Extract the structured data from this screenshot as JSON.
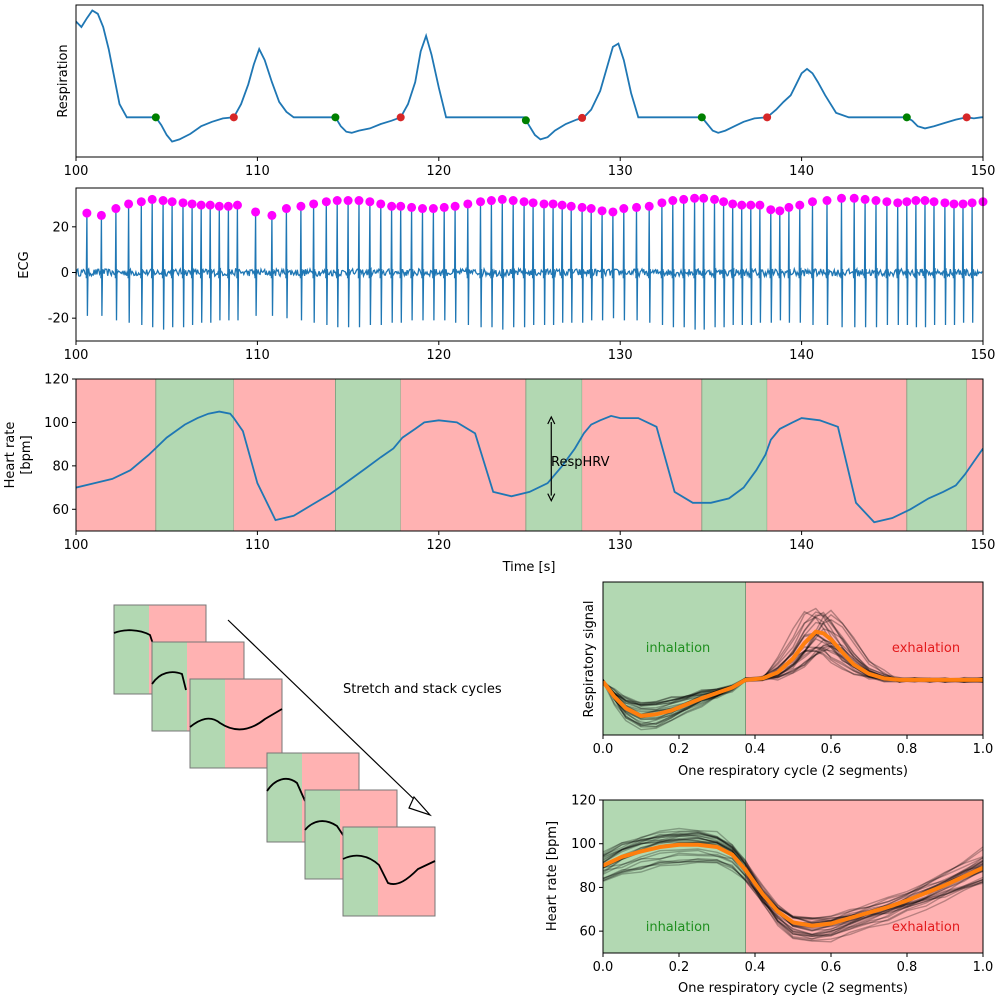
{
  "colors": {
    "signal": "#1f77b4",
    "inhalation_fill": "#b2d8b2",
    "exhalation_fill": "#ffb2b2",
    "onset_marker": "#008000",
    "peak_marker": "#d62728",
    "rpeak_marker": "#ff00ff",
    "average": "#ff7f0e",
    "traces": "#000000"
  },
  "texts": {
    "resp_ylabel": "Respiration",
    "ecg_ylabel": "ECG",
    "hr_ylabel_line1": "Heart rate",
    "hr_ylabel_line2": "[bpm]",
    "time_xlabel": "Time [s]",
    "resphrv_label": "RespHRV",
    "stack_label": "Stretch and stack cycles",
    "cycle_xlabel": "One respiratory cycle (2 segments)",
    "resp_signal_ylabel": "Respiratory signal",
    "hr_bpm_ylabel": "Heart rate [bpm]",
    "inhalation": "inhalation",
    "exhalation": "exhalation"
  },
  "chart_data": [
    {
      "type": "line",
      "name": "respiration",
      "ylabel": "Respiration",
      "xlim": [
        100,
        150
      ],
      "xticks": [
        100,
        110,
        120,
        130,
        140,
        150
      ],
      "x": [
        100.0,
        100.3,
        100.6,
        100.9,
        101.2,
        101.5,
        101.8,
        102.1,
        102.4,
        102.8,
        103.2,
        103.8,
        104.4,
        104.7,
        105.0,
        105.3,
        105.7,
        106.3,
        106.9,
        107.5,
        108.1,
        108.7,
        109.1,
        109.5,
        109.8,
        110.1,
        110.4,
        110.8,
        111.2,
        111.6,
        112.0,
        112.6,
        113.2,
        113.8,
        114.3,
        114.6,
        114.9,
        115.2,
        115.6,
        116.2,
        116.8,
        117.4,
        117.9,
        118.3,
        118.7,
        119.0,
        119.3,
        119.6,
        120.0,
        120.4,
        121.0,
        121.8,
        122.6,
        123.4,
        124.1,
        124.7,
        125.0,
        125.3,
        125.6,
        126.0,
        126.4,
        127.0,
        127.6,
        128.0,
        128.4,
        128.9,
        129.3,
        129.6,
        129.9,
        130.2,
        130.6,
        131.0,
        131.6,
        132.2,
        132.8,
        133.4,
        134.0,
        134.5,
        134.8,
        135.1,
        135.4,
        135.8,
        136.3,
        136.8,
        137.4,
        138.1,
        138.6,
        139.0,
        139.4,
        139.7,
        140.0,
        140.3,
        140.6,
        140.9,
        141.3,
        141.9,
        142.6,
        143.3,
        144.0,
        144.7,
        145.3,
        145.8,
        146.1,
        146.4,
        146.8,
        147.3,
        147.9,
        148.5,
        149.1,
        149.5,
        149.9,
        150.0
      ],
      "y": [
        0.85,
        0.8,
        0.88,
        0.95,
        0.92,
        0.8,
        0.6,
        0.35,
        0.1,
        -0.02,
        -0.02,
        -0.02,
        -0.02,
        -0.09,
        -0.18,
        -0.24,
        -0.22,
        -0.17,
        -0.1,
        -0.06,
        -0.03,
        -0.02,
        0.1,
        0.28,
        0.46,
        0.6,
        0.5,
        0.3,
        0.12,
        0.03,
        -0.02,
        -0.02,
        -0.02,
        -0.02,
        -0.02,
        -0.1,
        -0.15,
        -0.16,
        -0.14,
        -0.12,
        -0.08,
        -0.05,
        -0.02,
        0.1,
        0.3,
        0.58,
        0.72,
        0.55,
        0.25,
        -0.02,
        -0.02,
        -0.02,
        -0.02,
        -0.02,
        -0.02,
        -0.02,
        -0.1,
        -0.18,
        -0.22,
        -0.2,
        -0.14,
        -0.08,
        -0.04,
        -0.02,
        0.05,
        0.22,
        0.45,
        0.62,
        0.65,
        0.5,
        0.2,
        -0.02,
        -0.02,
        -0.02,
        -0.02,
        -0.02,
        -0.02,
        -0.02,
        -0.08,
        -0.14,
        -0.16,
        -0.14,
        -0.1,
        -0.06,
        -0.03,
        -0.02,
        0.05,
        0.12,
        0.18,
        0.28,
        0.38,
        0.42,
        0.38,
        0.3,
        0.18,
        0.02,
        -0.02,
        -0.02,
        -0.02,
        -0.02,
        -0.02,
        -0.02,
        -0.05,
        -0.1,
        -0.12,
        -0.1,
        -0.07,
        -0.04,
        -0.02,
        -0.03,
        -0.02,
        -0.02
      ],
      "onsets": [
        104.4,
        114.3,
        124.8,
        134.5,
        145.8
      ],
      "peaks": [
        108.7,
        117.9,
        127.9,
        138.1,
        149.1
      ],
      "ylim": [
        -0.38,
        1.0
      ],
      "yticks": "none"
    },
    {
      "type": "line",
      "name": "ecg",
      "ylabel": "ECG",
      "xlim": [
        100,
        150
      ],
      "xticks": [
        100,
        110,
        120,
        130,
        140,
        150
      ],
      "ylim": [
        -30,
        37
      ],
      "yticks": [
        -20,
        0,
        20
      ],
      "r_peak_times": [
        100.6,
        101.4,
        102.2,
        102.9,
        103.6,
        104.2,
        104.8,
        105.3,
        105.9,
        106.4,
        106.9,
        107.4,
        107.9,
        108.4,
        108.9,
        109.9,
        110.8,
        111.6,
        112.4,
        113.1,
        113.8,
        114.4,
        115.0,
        115.6,
        116.2,
        116.8,
        117.4,
        117.9,
        118.5,
        119.1,
        119.7,
        120.3,
        120.9,
        121.6,
        122.3,
        122.9,
        123.5,
        124.1,
        124.7,
        125.2,
        125.8,
        126.3,
        126.8,
        127.3,
        127.9,
        128.4,
        129.0,
        129.6,
        130.2,
        130.9,
        131.6,
        132.3,
        132.9,
        133.5,
        134.1,
        134.6,
        135.2,
        135.7,
        136.2,
        136.7,
        137.2,
        137.7,
        138.3,
        138.8,
        139.3,
        139.9,
        140.6,
        141.4,
        142.2,
        142.9,
        143.5,
        144.1,
        144.7,
        145.3,
        145.8,
        146.3,
        146.8,
        147.3,
        147.9,
        148.4,
        148.9,
        149.4,
        150.0
      ],
      "r_peak_values": [
        26,
        25,
        28,
        30,
        31,
        32,
        31.5,
        31,
        30.5,
        30,
        29.5,
        29.5,
        29,
        29,
        29.5,
        26.5,
        25,
        28,
        29,
        30,
        31,
        31.5,
        31.5,
        31.5,
        31,
        30,
        29,
        29,
        28.5,
        28,
        28,
        28.5,
        29,
        30,
        31,
        31.5,
        32,
        31.5,
        31,
        30.5,
        30,
        30,
        29.5,
        29,
        28.5,
        28,
        27,
        26.5,
        28,
        28.5,
        29,
        30.5,
        31.5,
        32,
        32.5,
        32.5,
        32,
        31,
        30,
        29.5,
        29.5,
        29.5,
        27.5,
        27,
        28.5,
        29.5,
        31,
        31.5,
        32.5,
        32.5,
        32,
        31.5,
        31,
        30.5,
        31,
        31.5,
        31.5,
        31,
        30.5,
        30,
        30,
        30.5,
        31
      ],
      "s_wave_values": [
        -19,
        -19,
        -21,
        -22,
        -23,
        -24,
        -25,
        -24,
        -24,
        -23,
        -22,
        -22,
        -21,
        -21,
        -21,
        -19,
        -19,
        -20,
        -21,
        -22,
        -23,
        -24,
        -24,
        -24,
        -23,
        -23,
        -22,
        -22,
        -21,
        -21,
        -21,
        -21,
        -22,
        -23,
        -24,
        -24,
        -25,
        -24,
        -24,
        -23,
        -23,
        -23,
        -22,
        -22,
        -22,
        -21,
        -21,
        -20,
        -21,
        -21,
        -22,
        -23,
        -24,
        -24,
        -25,
        -25,
        -24,
        -24,
        -23,
        -23,
        -23,
        -22,
        -22,
        -21,
        -22,
        -22,
        -23,
        -23,
        -24,
        -24,
        -24,
        -24,
        -23,
        -23,
        -23,
        -24,
        -24,
        -23,
        -23,
        -23,
        -22,
        -22,
        -23
      ]
    },
    {
      "type": "line",
      "name": "heart_rate",
      "ylabel": "Heart rate [bpm]",
      "xlabel": "Time [s]",
      "xlim": [
        100,
        150
      ],
      "xticks": [
        100,
        110,
        120,
        130,
        140,
        150
      ],
      "ylim": [
        50,
        120
      ],
      "yticks": [
        60,
        80,
        100,
        120
      ],
      "x": [
        100.0,
        101.0,
        102.0,
        103.0,
        104.0,
        105.0,
        106.0,
        106.7,
        107.3,
        107.9,
        108.5,
        108.7,
        109.2,
        110.0,
        111.0,
        112.0,
        113.0,
        114.0,
        115.0,
        116.0,
        116.8,
        117.5,
        118.0,
        118.7,
        119.2,
        120.0,
        121.0,
        122.0,
        123.0,
        124.0,
        125.0,
        126.0,
        126.8,
        127.5,
        128.0,
        128.4,
        128.9,
        129.5,
        130.0,
        131.0,
        132.0,
        133.0,
        134.0,
        135.0,
        136.0,
        136.8,
        137.5,
        138.0,
        138.3,
        138.8,
        139.5,
        140.0,
        141.0,
        142.0,
        143.0,
        144.0,
        145.0,
        146.0,
        147.0,
        147.8,
        148.5,
        149.0,
        149.5,
        150.0
      ],
      "y": [
        70,
        72,
        74,
        78,
        85,
        93,
        99,
        102,
        104,
        105,
        104,
        102,
        96,
        72,
        55,
        57,
        62,
        67,
        73,
        79,
        84,
        88,
        93,
        97,
        100,
        101,
        100,
        95,
        68,
        66,
        68,
        72,
        80,
        88,
        95,
        99,
        101,
        103,
        102,
        102,
        98,
        68,
        63,
        63,
        65,
        70,
        78,
        85,
        92,
        97,
        100,
        102,
        101,
        98,
        63,
        54,
        56,
        60,
        65,
        68,
        71,
        76,
        82,
        88
      ],
      "onsets": [
        104.4,
        114.3,
        124.8,
        134.5,
        145.8
      ],
      "peaks": [
        108.7,
        117.9,
        127.9,
        138.1,
        149.1
      ],
      "resphrv_arrow": {
        "x": 126.2,
        "y_top": 102.5,
        "y_bottom": 64
      }
    },
    {
      "type": "line",
      "name": "stacked_respiratory_cycles",
      "ylabel": "Respiratory signal",
      "xlabel": "One respiratory cycle (2 segments)",
      "xlim": [
        0.0,
        1.0
      ],
      "xticks": [
        0.0,
        0.2,
        0.4,
        0.6,
        0.8,
        1.0
      ],
      "ylim": [
        -0.7,
        1.3
      ],
      "yticks": "none",
      "boundary": 0.375,
      "average": {
        "x": [
          0.0,
          0.03,
          0.06,
          0.1,
          0.14,
          0.18,
          0.22,
          0.26,
          0.3,
          0.34,
          0.375,
          0.42,
          0.46,
          0.5,
          0.53,
          0.56,
          0.58,
          0.6,
          0.63,
          0.66,
          0.7,
          0.74,
          0.78,
          0.82,
          0.86,
          0.9,
          0.95,
          1.0
        ],
        "y": [
          0.0,
          -0.2,
          -0.35,
          -0.45,
          -0.43,
          -0.38,
          -0.3,
          -0.22,
          -0.15,
          -0.08,
          0.02,
          0.04,
          0.12,
          0.3,
          0.5,
          0.65,
          0.63,
          0.55,
          0.38,
          0.22,
          0.1,
          0.04,
          0.02,
          0.02,
          0.02,
          0.02,
          0.02,
          0.02
        ]
      }
    },
    {
      "type": "line",
      "name": "stacked_heart_rate_cycles",
      "ylabel": "Heart rate [bpm]",
      "xlabel": "One respiratory cycle (2 segments)",
      "xlim": [
        0.0,
        1.0
      ],
      "xticks": [
        0.0,
        0.2,
        0.4,
        0.6,
        0.8,
        1.0
      ],
      "ylim": [
        50,
        120
      ],
      "yticks": [
        60,
        80,
        100,
        120
      ],
      "boundary": 0.375,
      "average": {
        "x": [
          0.0,
          0.05,
          0.1,
          0.15,
          0.2,
          0.25,
          0.3,
          0.34,
          0.375,
          0.42,
          0.46,
          0.5,
          0.55,
          0.6,
          0.65,
          0.7,
          0.75,
          0.8,
          0.85,
          0.9,
          0.95,
          1.0
        ],
        "y": [
          90,
          94,
          96.5,
          98.5,
          99.5,
          99.5,
          98.5,
          95,
          88,
          77,
          69,
          64,
          62.5,
          63.5,
          66,
          68.5,
          71,
          74,
          77.5,
          81,
          85,
          89
        ]
      }
    }
  ]
}
